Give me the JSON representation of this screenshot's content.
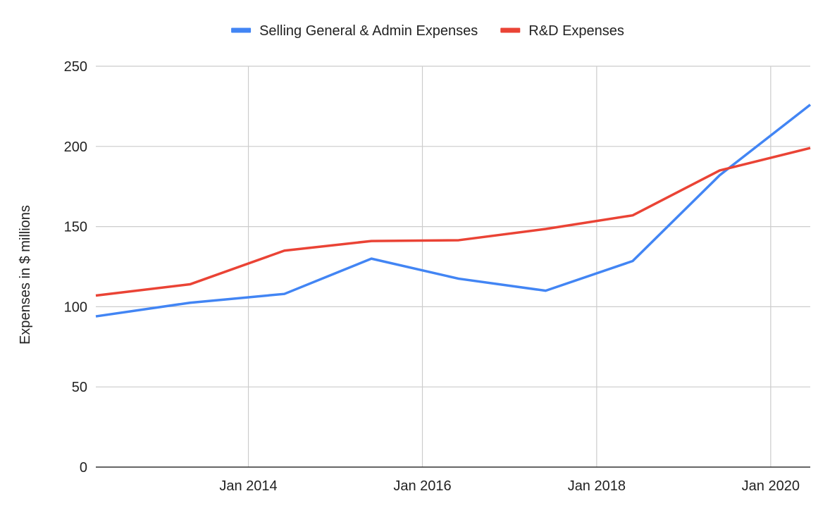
{
  "chart_data": {
    "type": "line",
    "title": "",
    "xlabel": "",
    "ylabel": "Expenses in $ millions",
    "ylim": [
      0,
      250
    ],
    "yticks": [
      0,
      50,
      100,
      150,
      200,
      250
    ],
    "xlim": [
      "2012-04-01",
      "2020-06-15"
    ],
    "xticks": [
      {
        "date": "2014-01-01",
        "label": "Jan 2014"
      },
      {
        "date": "2016-01-01",
        "label": "Jan 2016"
      },
      {
        "date": "2018-01-01",
        "label": "Jan 2018"
      },
      {
        "date": "2020-01-01",
        "label": "Jan 2020"
      }
    ],
    "grid": true,
    "legend_position": "top",
    "series": [
      {
        "name": "Selling General & Admin Expenses",
        "color": "#4285F4",
        "points": [
          {
            "x": "2012-04-01",
            "y": 94
          },
          {
            "x": "2013-05-01",
            "y": 102.5
          },
          {
            "x": "2014-06-01",
            "y": 108
          },
          {
            "x": "2015-06-01",
            "y": 130
          },
          {
            "x": "2016-06-01",
            "y": 117.5
          },
          {
            "x": "2017-06-01",
            "y": 110
          },
          {
            "x": "2018-06-01",
            "y": 128.5
          },
          {
            "x": "2019-06-01",
            "y": 182
          },
          {
            "x": "2020-06-15",
            "y": 226
          }
        ]
      },
      {
        "name": "R&D Expenses",
        "color": "#EA4335",
        "points": [
          {
            "x": "2012-04-01",
            "y": 107
          },
          {
            "x": "2013-05-01",
            "y": 114
          },
          {
            "x": "2014-06-01",
            "y": 135
          },
          {
            "x": "2015-06-01",
            "y": 141
          },
          {
            "x": "2016-06-01",
            "y": 141.5
          },
          {
            "x": "2017-06-01",
            "y": 148.5
          },
          {
            "x": "2018-06-01",
            "y": 157
          },
          {
            "x": "2019-06-01",
            "y": 185
          },
          {
            "x": "2020-06-15",
            "y": 199
          }
        ]
      }
    ]
  }
}
